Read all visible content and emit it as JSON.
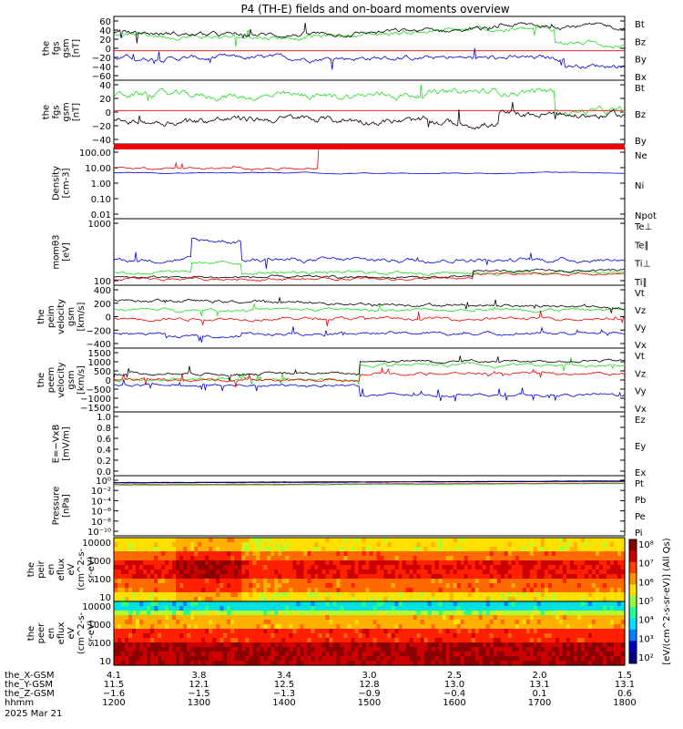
{
  "title": "P4 (TH-E) fields and on-board moments overview",
  "colors": {
    "black": "#000000",
    "red": "#ee0000",
    "green": "#22dd22",
    "blue": "#0000dd",
    "brown": "#cc2222"
  },
  "chart_data": [
    {
      "type": "line",
      "id": "fgs1",
      "ylabel": [
        "the",
        "fgs",
        "gsm",
        "[nT]"
      ],
      "yticks": [
        "60",
        "40",
        "20",
        "0",
        "−20",
        "−40",
        "−60"
      ],
      "ylim": [
        -60,
        70
      ],
      "legend": [
        {
          "name": "Bt",
          "color": "#000000"
        },
        {
          "name": "Bz",
          "color": "#ee0000"
        },
        {
          "name": "By",
          "color": "#22dd22"
        },
        {
          "name": "Bx",
          "color": "#0000dd"
        }
      ]
    },
    {
      "type": "line",
      "id": "fgs2",
      "ylabel": [
        "the",
        "fgs",
        "gsm",
        "[nT]"
      ],
      "yticks": [
        "40",
        "20",
        "0",
        "−20",
        "−40"
      ],
      "ylim": [
        -55,
        50
      ],
      "legend": [
        {
          "name": "Bt",
          "color": "#000000"
        },
        {
          "name": "Bz",
          "color": "#ee0000"
        },
        {
          "name": "By",
          "color": "#22dd22"
        }
      ]
    },
    {
      "type": "line",
      "id": "density",
      "ylabel": [
        "Density",
        "[cm-3]"
      ],
      "yticks": [
        "100.00",
        "10.00",
        "1.00",
        "0.10",
        "0.01"
      ],
      "scale": "log",
      "legend": [
        {
          "name": "Ne",
          "color": "#ee0000"
        },
        {
          "name": "Ni",
          "color": "#000000"
        },
        {
          "name": "Npot",
          "color": "#0000dd"
        }
      ]
    },
    {
      "type": "line",
      "id": "temp",
      "ylabel": [
        "momθ3",
        "[eV]"
      ],
      "yticks": [
        "1000",
        "100"
      ],
      "scale": "log",
      "legend": [
        {
          "name": "Te⊥",
          "color": "#ee0000"
        },
        {
          "name": "Te∥",
          "color": "#000000"
        },
        {
          "name": "Ti⊥",
          "color": "#0000dd"
        },
        {
          "name": "Ti∥",
          "color": "#22dd22"
        }
      ]
    },
    {
      "type": "line",
      "id": "ivel",
      "ylabel": [
        "the",
        "peim",
        "velocity",
        "gsm",
        "[km/s]"
      ],
      "yticks": [
        "400",
        "200",
        "0",
        "−200",
        "−400"
      ],
      "ylim": [
        -400,
        450
      ],
      "legend": [
        {
          "name": "Vt",
          "color": "#000000"
        },
        {
          "name": "Vz",
          "color": "#ee0000"
        },
        {
          "name": "Vy",
          "color": "#22dd22"
        },
        {
          "name": "Vx",
          "color": "#0000dd"
        }
      ]
    },
    {
      "type": "line",
      "id": "evel",
      "ylabel": [
        "the",
        "peem",
        "velocity",
        "gsm",
        "[km/s]"
      ],
      "yticks": [
        "1500",
        "1000",
        "500",
        "0",
        "−500",
        "−1000",
        "−1500"
      ],
      "ylim": [
        -1500,
        1500
      ],
      "legend": [
        {
          "name": "Vt",
          "color": "#000000"
        },
        {
          "name": "Vz",
          "color": "#ee0000"
        },
        {
          "name": "Vy",
          "color": "#22dd22"
        },
        {
          "name": "Vx",
          "color": "#0000dd"
        }
      ]
    },
    {
      "type": "line",
      "id": "efield",
      "ylabel": [
        "E=−VxB",
        "[mV/m]"
      ],
      "yticks": [
        "1.0",
        "0.8",
        "0.6",
        "0.4",
        "0.2",
        "0.0"
      ],
      "ylim": [
        0,
        1
      ],
      "legend": [
        {
          "name": "Ez",
          "color": "#ee0000"
        },
        {
          "name": "Ey",
          "color": "#22dd22"
        },
        {
          "name": "Ex",
          "color": "#0000dd"
        }
      ]
    },
    {
      "type": "line",
      "id": "pressure",
      "ylabel": [
        "Pressure",
        "[nPa]"
      ],
      "yticks": [
        "10⁰",
        "10⁻²",
        "10⁻⁴",
        "10⁻⁶",
        "10⁻⁸",
        "10⁻¹⁰"
      ],
      "scale": "log",
      "legend": [
        {
          "name": "Pt",
          "color": "#000000"
        },
        {
          "name": "Pb",
          "color": "#cc2222"
        },
        {
          "name": "Pe",
          "color": "#22dd22"
        },
        {
          "name": "Pi",
          "color": "#0000dd"
        }
      ]
    },
    {
      "type": "heatmap",
      "id": "ion",
      "ylabel": [
        "the",
        "peir",
        "en",
        "eflux",
        "eV",
        "(cm^2-s-",
        "sr-eV)"
      ],
      "yticks": [
        "10000",
        "1000",
        "100",
        "10"
      ],
      "scale": "log"
    },
    {
      "type": "heatmap",
      "id": "ele",
      "ylabel": [
        "the",
        "peer",
        "en",
        "eflux",
        "eV",
        "(cm^2-s-",
        "sr-eV)"
      ],
      "yticks": [
        "10000",
        "1000",
        "100",
        "10"
      ],
      "scale": "log"
    }
  ],
  "colorbar": {
    "label": "[eV/(cm^2-s-sr-eV)] (All Qs)",
    "ticks": [
      "10⁸",
      "10⁷",
      "10⁶",
      "10⁵",
      "10⁴",
      "10³",
      "10²"
    ]
  },
  "xaxis": {
    "rows": [
      {
        "label": "the_X-GSM",
        "values": [
          "4.1",
          "3.8",
          "3.4",
          "3.0",
          "2.5",
          "2.0",
          "1.5"
        ]
      },
      {
        "label": "the_Y-GSM",
        "values": [
          "11.5",
          "12.1",
          "12.5",
          "12.8",
          "13.0",
          "13.1",
          "13.1"
        ]
      },
      {
        "label": "the_Z-GSM",
        "values": [
          "−1.6",
          "−1.5",
          "−1.3",
          "−0.9",
          "−0.4",
          "0.1",
          "0.6"
        ]
      },
      {
        "label": "hhmm",
        "values": [
          "1200",
          "1300",
          "1400",
          "1500",
          "1600",
          "1700",
          "1800"
        ]
      }
    ],
    "date": "2025 Mar 21"
  }
}
